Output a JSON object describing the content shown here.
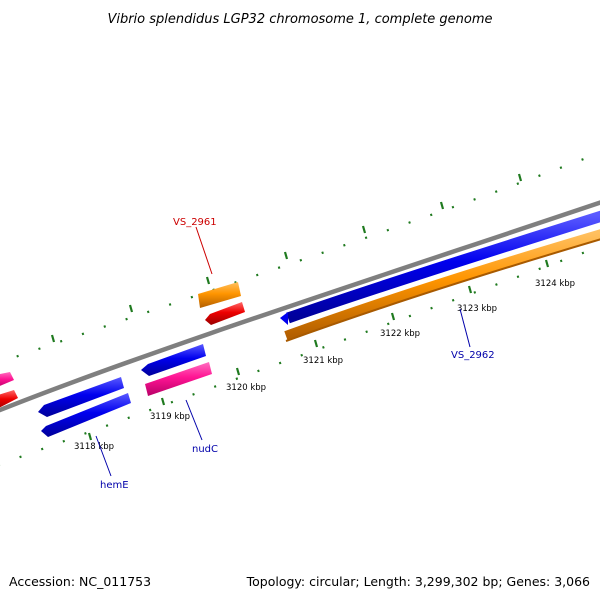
{
  "title": "Vibrio splendidus LGP32 chromosome 1, complete genome",
  "footer": {
    "accession": "Accession: NC_011753",
    "summary": "Topology: circular; Length: 3,299,302 bp; Genes: 3,066"
  },
  "colors": {
    "background": "#ffffff",
    "backbone": "#808080",
    "tick_dash": "#1f7a1f",
    "forward_cds": "#0000ee",
    "reverse_cds": "#ff1493",
    "rna_forward": "#ff8c00",
    "rna_reverse": "#ee0000",
    "label_blue": "#0000aa",
    "label_red": "#cc0000"
  },
  "scale": {
    "unit": "kbp",
    "ticks": [
      {
        "value": 3118,
        "label": "3118 kbp"
      },
      {
        "value": 3119,
        "label": "3119 kbp"
      },
      {
        "value": 3120,
        "label": "3120 kbp"
      },
      {
        "value": 3121,
        "label": "3121 kbp"
      },
      {
        "value": 3122,
        "label": "3122 kbp"
      },
      {
        "value": 3123,
        "label": "3123 kbp"
      },
      {
        "value": 3124,
        "label": "3124 kbp"
      }
    ]
  },
  "gene_labels": [
    {
      "id": "vs2961",
      "text": "VS_2961",
      "color": "#cc0000"
    },
    {
      "id": "vs2962",
      "text": "VS_2962",
      "color": "#0000aa"
    },
    {
      "id": "nudC",
      "text": "nudC",
      "color": "#0000aa"
    },
    {
      "id": "hemE",
      "text": "hemE",
      "color": "#0000aa"
    }
  ]
}
